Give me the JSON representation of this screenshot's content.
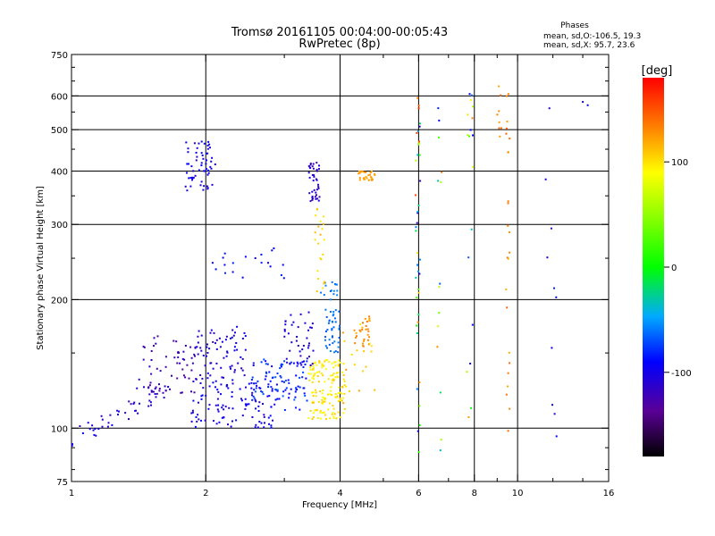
{
  "chart_data": {
    "type": "scatter",
    "title": "Tromsø 20161105 00:04:00-00:05:43",
    "subtitle": "RwPretec (8p)",
    "phases": {
      "heading": "Phases",
      "line1": "mean, sd,O:-106.5, 19.3",
      "line2": "mean, sd,X:  95.7, 23.6"
    },
    "xlabel": "Frequency [MHz]",
    "ylabel": "Stationary phase Virtual Height [km]",
    "x_scale": "log",
    "y_scale": "log",
    "xlim": [
      1,
      16
    ],
    "ylim": [
      75,
      750
    ],
    "x_ticks": [
      1,
      2,
      4,
      6,
      8,
      10,
      16
    ],
    "x_tick_labels": [
      "1",
      "2",
      "4",
      "6",
      "8",
      "10",
      "16"
    ],
    "x_minor_ticks": [
      3,
      5,
      7,
      9,
      12,
      14
    ],
    "y_ticks": [
      75,
      100,
      200,
      300,
      400,
      500,
      600,
      750
    ],
    "y_tick_labels": [
      "75",
      "100",
      "200",
      "300",
      "400",
      "500",
      "600",
      "750"
    ],
    "y_minor_ticks": [
      80,
      90,
      150,
      250,
      350,
      450,
      550,
      650,
      700
    ],
    "grid_x": [
      2,
      4,
      6,
      8,
      10
    ],
    "grid_y": [
      100,
      200,
      300,
      400,
      500,
      600
    ],
    "colorbar": {
      "label": "[deg]",
      "range": [
        -180,
        180
      ],
      "tick_values": [
        -100,
        0,
        100
      ],
      "tick_labels": [
        "-100",
        "0",
        "100"
      ]
    },
    "clusters": [
      {
        "f": [
          1.0,
          1.65
        ],
        "h": [
          88,
          125
        ],
        "n": 50,
        "phase": [
          -125,
          -90
        ],
        "trend": 1
      },
      {
        "f": [
          1.4,
          1.9
        ],
        "h": [
          120,
          165
        ],
        "n": 60,
        "phase": [
          -135,
          -110
        ]
      },
      {
        "f": [
          1.85,
          2.9
        ],
        "h": [
          100,
          130
        ],
        "n": 110,
        "phase": [
          -115,
          -85
        ]
      },
      {
        "f": [
          1.9,
          2.5
        ],
        "h": [
          130,
          175
        ],
        "n": 70,
        "phase": [
          -115,
          -95
        ]
      },
      {
        "f": [
          2.5,
          3.4
        ],
        "h": [
          110,
          145
        ],
        "n": 90,
        "phase": [
          -95,
          -65
        ]
      },
      {
        "f": [
          3.0,
          3.5
        ],
        "h": [
          140,
          190
        ],
        "n": 45,
        "phase": [
          -115,
          -95
        ]
      },
      {
        "f": [
          3.4,
          4.1
        ],
        "h": [
          105,
          145
        ],
        "n": 140,
        "phase": [
          85,
          110
        ]
      },
      {
        "f": [
          3.7,
          4.0
        ],
        "h": [
          150,
          190
        ],
        "n": 40,
        "phase": [
          -70,
          -55
        ]
      },
      {
        "f": [
          4.3,
          4.7
        ],
        "h": [
          155,
          185
        ],
        "n": 25,
        "phase": [
          120,
          140
        ]
      },
      {
        "f": [
          4.0,
          4.8
        ],
        "h": [
          110,
          180
        ],
        "n": 25,
        "phase": [
          95,
          125
        ]
      },
      {
        "f": [
          1.8,
          2.1
        ],
        "h": [
          360,
          470
        ],
        "n": 60,
        "phase": [
          -110,
          -90
        ]
      },
      {
        "f": [
          3.4,
          3.6
        ],
        "h": [
          340,
          420
        ],
        "n": 40,
        "phase": [
          -125,
          -100
        ]
      },
      {
        "f": [
          4.4,
          4.8
        ],
        "h": [
          380,
          400
        ],
        "n": 30,
        "phase": [
          115,
          130
        ]
      },
      {
        "f": [
          2.0,
          3.0
        ],
        "h": [
          220,
          265
        ],
        "n": 20,
        "phase": [
          -100,
          -80
        ]
      },
      {
        "f": [
          3.6,
          3.95
        ],
        "h": [
          200,
          220
        ],
        "n": 15,
        "phase": [
          -65,
          -55
        ]
      },
      {
        "f": [
          3.5,
          3.7
        ],
        "h": [
          200,
          330
        ],
        "n": 22,
        "phase": [
          95,
          120
        ]
      },
      {
        "f": [
          5.9,
          6.05
        ],
        "h": [
          85,
          620
        ],
        "n": 40,
        "phase": [
          -130,
          170
        ]
      },
      {
        "f": [
          6.6,
          6.8
        ],
        "h": [
          85,
          600
        ],
        "n": 14,
        "phase": [
          -110,
          140
        ]
      },
      {
        "f": [
          7.7,
          7.95
        ],
        "h": [
          85,
          640
        ],
        "n": 18,
        "phase": [
          -100,
          140
        ]
      },
      {
        "f": [
          9.4,
          9.6
        ],
        "h": [
          90,
          640
        ],
        "n": 24,
        "phase": [
          110,
          150
        ]
      },
      {
        "f": [
          9.0,
          9.2
        ],
        "h": [
          480,
          640
        ],
        "n": 8,
        "phase": [
          120,
          160
        ]
      },
      {
        "f": [
          11.5,
          12.5
        ],
        "h": [
          95,
          650
        ],
        "n": 10,
        "phase": [
          -115,
          -80
        ]
      },
      {
        "f": [
          13.5,
          14.5
        ],
        "h": [
          570,
          590
        ],
        "n": 2,
        "phase": [
          -100,
          -90
        ]
      }
    ]
  }
}
